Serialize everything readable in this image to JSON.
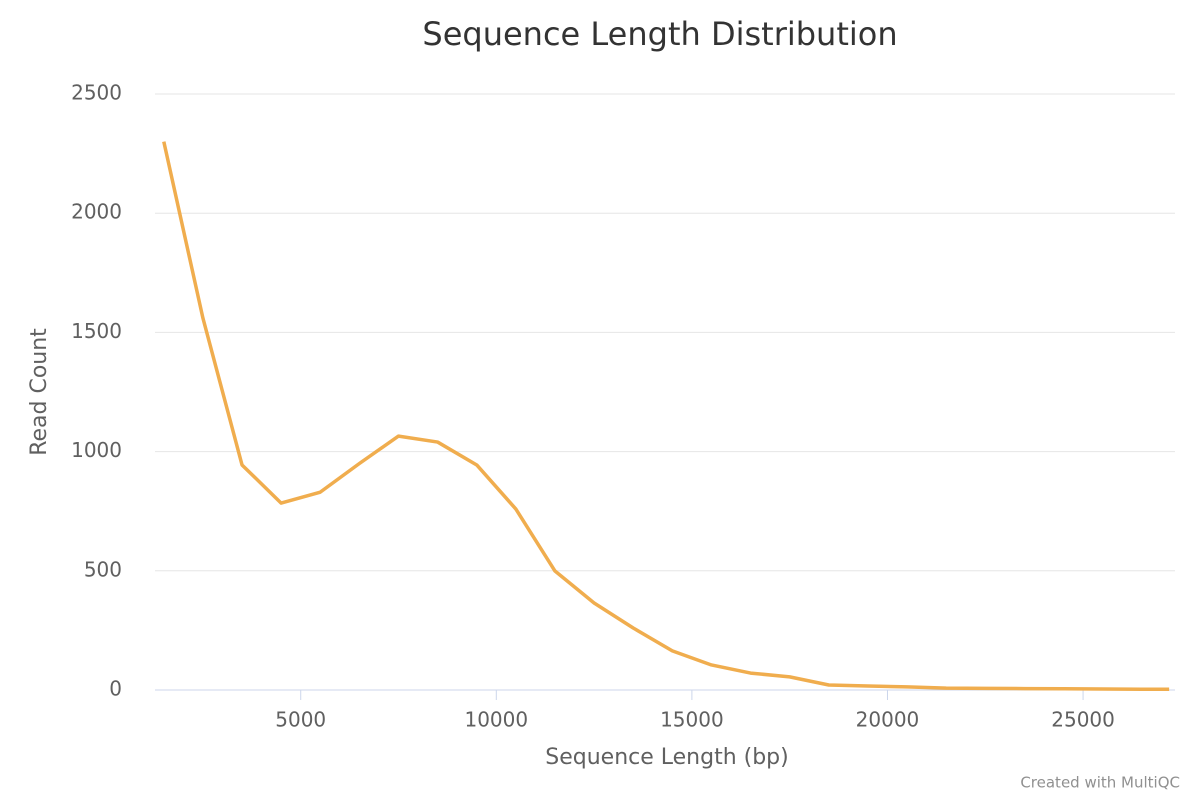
{
  "chart_data": {
    "type": "line",
    "title": "Sequence Length Distribution",
    "x_label": "Sequence Length (bp)",
    "y_label": "Read Count",
    "credits": "Created with MultiQC",
    "x": [
      1500,
      2500,
      3500,
      4500,
      5500,
      6500,
      7500,
      8500,
      9500,
      10500,
      11500,
      12500,
      13500,
      14500,
      15500,
      16500,
      17500,
      18500,
      19500,
      20500,
      21500,
      22500,
      23500,
      24500,
      25500,
      26500,
      27200
    ],
    "series": [
      {
        "name": "Read Count",
        "color": "#f0ad4e",
        "values": [
          2300,
          1560,
          944,
          784,
          830,
          950,
          1065,
          1040,
          944,
          759,
          499,
          365,
          260,
          164,
          105,
          71,
          55,
          21,
          17,
          13,
          8,
          7,
          6,
          5,
          4,
          3,
          3
        ]
      }
    ],
    "xlim": [
      1275,
      27350
    ],
    "xticks": [
      5000,
      10000,
      15000,
      20000,
      25000
    ],
    "ylim": [
      0,
      2500
    ],
    "yticks": [
      0,
      500,
      1000,
      1500,
      2000,
      2500
    ],
    "grid": true
  }
}
